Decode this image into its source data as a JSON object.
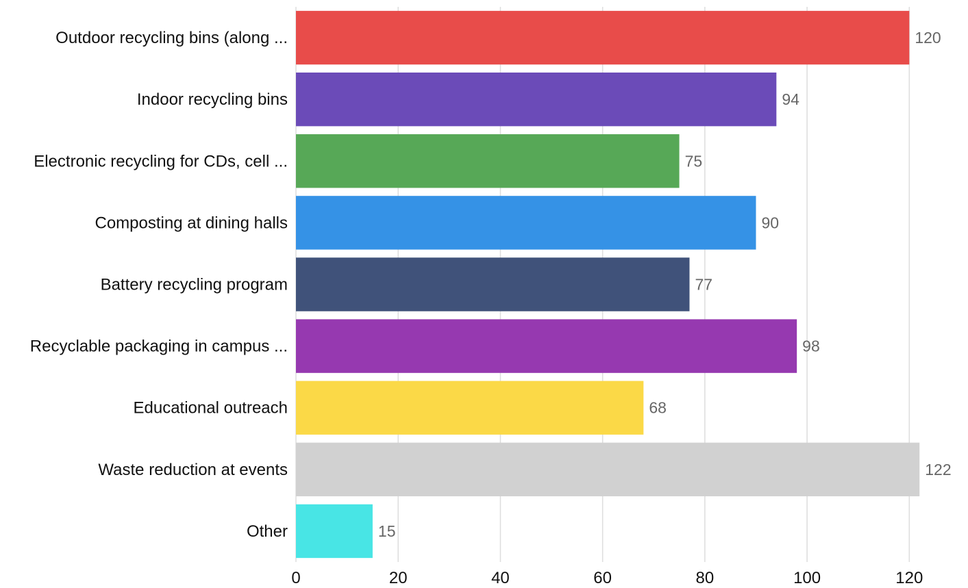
{
  "chart_data": {
    "type": "bar",
    "orientation": "horizontal",
    "categories": [
      "Outdoor recycling bins (along ...",
      "Indoor recycling bins",
      "Electronic recycling for CDs, cell ...",
      "Composting at dining halls",
      "Battery recycling program",
      "Recyclable packaging in campus ...",
      "Educational outreach",
      "Waste reduction at events",
      "Other"
    ],
    "values": [
      120,
      94,
      75,
      90,
      77,
      98,
      68,
      122,
      15
    ],
    "colors": [
      "#e84c4a",
      "#6b4bb8",
      "#57a857",
      "#3592e6",
      "#40527a",
      "#9639b0",
      "#fbd947",
      "#d1d1d1",
      "#48e5e5"
    ],
    "xlim": [
      0,
      128
    ],
    "xticks": [
      0,
      20,
      40,
      60,
      80,
      100,
      120
    ],
    "grid": true,
    "data_labels": true,
    "title": "",
    "xlabel": "",
    "ylabel": ""
  }
}
